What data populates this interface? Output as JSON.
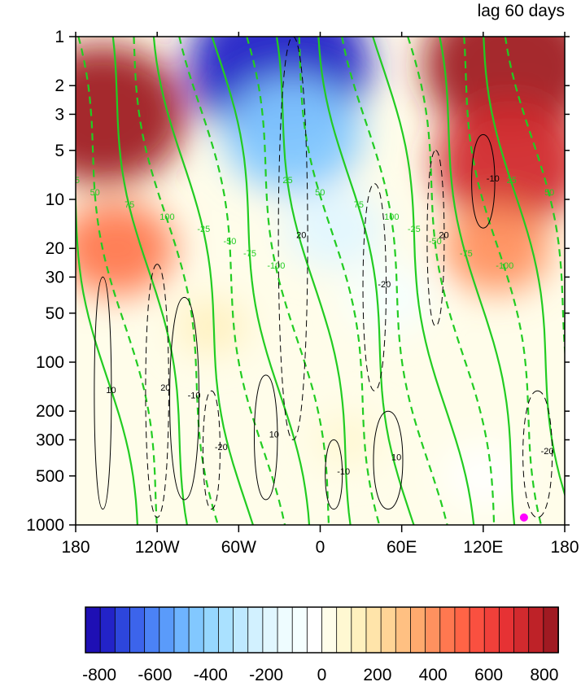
{
  "chart_data": {
    "type": "heatmap",
    "title": "lag 60 days",
    "x_ticks": [
      "180",
      "120W",
      "60W",
      "0",
      "60E",
      "120E",
      "180"
    ],
    "x_tick_values": [
      -180,
      -120,
      -60,
      0,
      60,
      120,
      180
    ],
    "y_ticks": [
      "1",
      "2",
      "3",
      "5",
      "10",
      "20",
      "30",
      "50",
      "100",
      "200",
      "300",
      "500",
      "1000"
    ],
    "y_tick_values": [
      1,
      2,
      3,
      5,
      10,
      20,
      30,
      50,
      100,
      200,
      300,
      500,
      1000
    ],
    "y_scale": "log",
    "y_reversed": true,
    "xlim": [
      -180,
      180
    ],
    "ylim": [
      1000,
      1
    ],
    "colorbar": {
      "ticks": [
        "-800",
        "-600",
        "-400",
        "-200",
        "0",
        "200",
        "400",
        "600",
        "800"
      ],
      "tick_values": [
        -800,
        -600,
        -400,
        -200,
        0,
        200,
        400,
        600,
        800
      ],
      "levels": [
        -850,
        -800,
        -750,
        -700,
        -650,
        -600,
        -550,
        -500,
        -450,
        -400,
        -350,
        -300,
        -250,
        -200,
        -150,
        -100,
        -50,
        0,
        50,
        100,
        150,
        200,
        250,
        300,
        350,
        400,
        450,
        500,
        550,
        600,
        650,
        700,
        750,
        800,
        850
      ],
      "colors": [
        "#1e0fb4",
        "#2323c8",
        "#2d46dc",
        "#3c64eb",
        "#4b82f5",
        "#5a9bfa",
        "#6eb4ff",
        "#82c8ff",
        "#96d7ff",
        "#aae1ff",
        "#bee9ff",
        "#d2f1ff",
        "#e1f7ff",
        "#eefcff",
        "#f5ffff",
        "#ffffff",
        "#fffdea",
        "#fff8d2",
        "#fff0be",
        "#ffe4aa",
        "#ffd496",
        "#ffc082",
        "#ffaa6e",
        "#ff915f",
        "#ff7850",
        "#ff6446",
        "#fa5040",
        "#f0403a",
        "#e63234",
        "#d22a2e",
        "#be2228",
        "#a01a22"
      ],
      "label": ""
    },
    "shading_fields": [
      {
        "lon": -160,
        "p": 3,
        "value": 700
      },
      {
        "lon": -150,
        "p": 20,
        "value": 350
      },
      {
        "lon": -30,
        "p": 1.5,
        "value": -800
      },
      {
        "lon": -20,
        "p": 4,
        "value": -500
      },
      {
        "lon": 10,
        "p": 15,
        "value": -250
      },
      {
        "lon": 50,
        "p": 40,
        "value": -150
      },
      {
        "lon": 140,
        "p": 1.5,
        "value": 750
      },
      {
        "lon": 140,
        "p": 6,
        "value": 600
      },
      {
        "lon": 130,
        "p": 20,
        "value": 300
      },
      {
        "lon": -80,
        "p": 60,
        "value": 50
      },
      {
        "lon": 20,
        "p": 300,
        "value": 30
      },
      {
        "lon": 120,
        "p": 500,
        "value": -100
      }
    ],
    "green_contour_labels": [
      "25",
      "50",
      "75",
      "100",
      "-25",
      "-50",
      "-75",
      "-100"
    ],
    "black_contour_labels": [
      "10",
      "20",
      "-10",
      "-20"
    ],
    "marker": {
      "lon": 150,
      "p": 900,
      "color": "#ff00ff"
    }
  }
}
